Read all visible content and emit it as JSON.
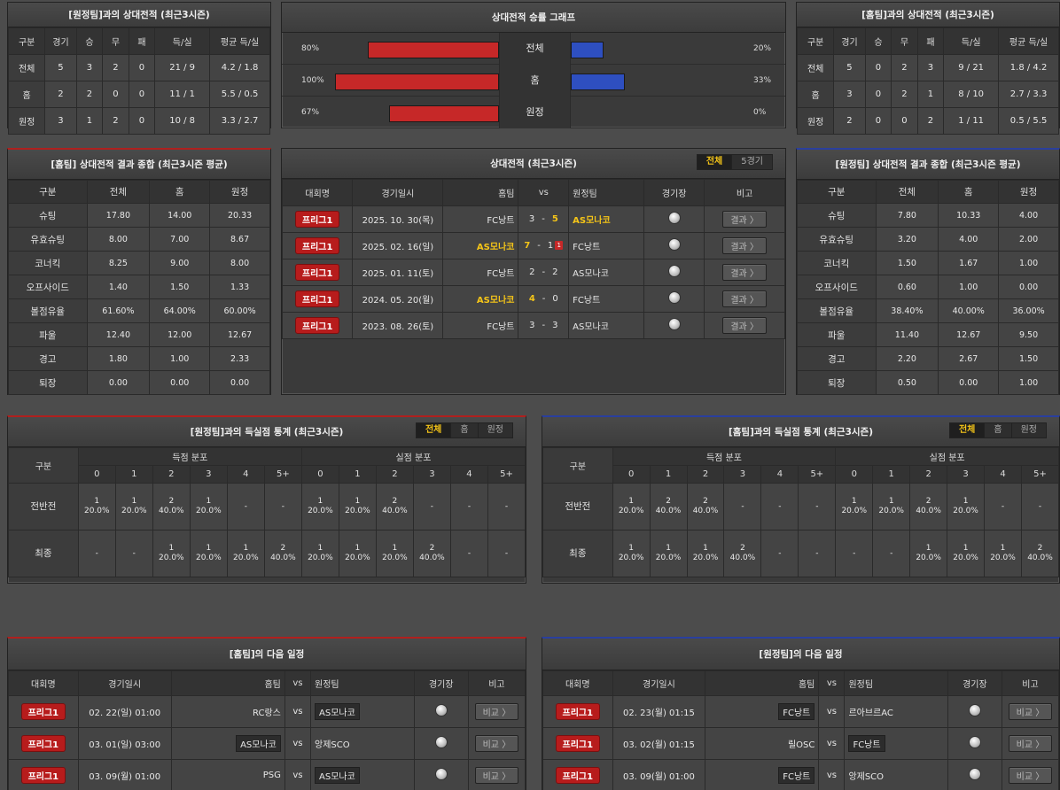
{
  "away_h2h": {
    "title": "[원정팀]과의 상대전적 (최근3시즌)",
    "headers": [
      "구분",
      "경기",
      "승",
      "무",
      "패",
      "득/실",
      "평균 득/실"
    ],
    "rows": [
      [
        "전체",
        "5",
        "3",
        "2",
        "0",
        "21 / 9",
        "4.2 / 1.8"
      ],
      [
        "홈",
        "2",
        "2",
        "0",
        "0",
        "11 / 1",
        "5.5 / 0.5"
      ],
      [
        "원정",
        "3",
        "1",
        "2",
        "0",
        "10 / 8",
        "3.3 / 2.7"
      ]
    ]
  },
  "graph": {
    "title": "상대전적 승률 그래프",
    "rows": [
      {
        "label": "전체",
        "home_pct": "80%",
        "home": 80,
        "away_pct": "20%",
        "away": 20
      },
      {
        "label": "홈",
        "home_pct": "100%",
        "home": 100,
        "away_pct": "33%",
        "away": 33
      },
      {
        "label": "원정",
        "home_pct": "67%",
        "home": 67,
        "away_pct": "0%",
        "away": 0
      }
    ],
    "home_color": "#c62828",
    "away_color": "#2e4fc0"
  },
  "home_h2h": {
    "title": "[홈팀]과의 상대전적 (최근3시즌)",
    "headers": [
      "구분",
      "경기",
      "승",
      "무",
      "패",
      "득/실",
      "평균 득/실"
    ],
    "rows": [
      [
        "전체",
        "5",
        "0",
        "2",
        "3",
        "9 / 21",
        "1.8 / 4.2"
      ],
      [
        "홈",
        "3",
        "0",
        "2",
        "1",
        "8 / 10",
        "2.7 / 3.3"
      ],
      [
        "원정",
        "2",
        "0",
        "0",
        "2",
        "1 / 11",
        "0.5 / 5.5"
      ]
    ]
  },
  "home_stats": {
    "title": "[홈팀] 상대전적 결과 종합 (최근3시즌 평균)",
    "headers": [
      "구분",
      "전체",
      "홈",
      "원정"
    ],
    "rows": [
      [
        "슈팅",
        "17.80",
        "14.00",
        "20.33"
      ],
      [
        "유효슈팅",
        "8.00",
        "7.00",
        "8.67"
      ],
      [
        "코너킥",
        "8.25",
        "9.00",
        "8.00"
      ],
      [
        "오프사이드",
        "1.40",
        "1.50",
        "1.33"
      ],
      [
        "볼점유율",
        "61.60%",
        "64.00%",
        "60.00%"
      ],
      [
        "파울",
        "12.40",
        "12.00",
        "12.67"
      ],
      [
        "경고",
        "1.80",
        "1.00",
        "2.33"
      ],
      [
        "퇴장",
        "0.00",
        "0.00",
        "0.00"
      ]
    ]
  },
  "away_stats": {
    "title": "[원정팀] 상대전적 결과 종합 (최근3시즌 평균)",
    "headers": [
      "구분",
      "전체",
      "홈",
      "원정"
    ],
    "rows": [
      [
        "슈팅",
        "7.80",
        "10.33",
        "4.00"
      ],
      [
        "유효슈팅",
        "3.20",
        "4.00",
        "2.00"
      ],
      [
        "코너킥",
        "1.50",
        "1.67",
        "1.00"
      ],
      [
        "오프사이드",
        "0.60",
        "1.00",
        "0.00"
      ],
      [
        "볼점유율",
        "38.40%",
        "40.00%",
        "36.00%"
      ],
      [
        "파울",
        "11.40",
        "12.67",
        "9.50"
      ],
      [
        "경고",
        "2.20",
        "2.67",
        "1.50"
      ],
      [
        "퇴장",
        "0.50",
        "0.00",
        "1.00"
      ]
    ]
  },
  "matches": {
    "title": "상대전적 (최근3시즌)",
    "tabs": [
      "전체",
      "5경기"
    ],
    "headers": {
      "league": "대회명",
      "date": "경기일시",
      "home": "홈팀",
      "vs": "vs",
      "away": "원정팀",
      "venue": "경기장",
      "note": "비고"
    },
    "rows": [
      {
        "league": "프리그1",
        "date": "2025. 10. 30(목)",
        "home": "FC낭트",
        "hs": "3",
        "as": "5",
        "away": "AS모나코",
        "winner": "away",
        "card": ""
      },
      {
        "league": "프리그1",
        "date": "2025. 02. 16(일)",
        "home": "AS모나코",
        "hs": "7",
        "as": "1",
        "away": "FC낭트",
        "winner": "home",
        "card": "1"
      },
      {
        "league": "프리그1",
        "date": "2025. 01. 11(토)",
        "home": "FC낭트",
        "hs": "2",
        "as": "2",
        "away": "AS모나코",
        "winner": "",
        "card": ""
      },
      {
        "league": "프리그1",
        "date": "2024. 05. 20(월)",
        "home": "AS모나코",
        "hs": "4",
        "as": "0",
        "away": "FC낭트",
        "winner": "home",
        "card": ""
      },
      {
        "league": "프리그1",
        "date": "2023. 08. 26(토)",
        "home": "FC낭트",
        "hs": "3",
        "as": "3",
        "away": "AS모나코",
        "winner": "",
        "card": ""
      }
    ],
    "result_label": "결과 〉",
    "dash": "-"
  },
  "left_goals": {
    "title": "[원정팀]과의 득실점 통계 (최근3시즌)",
    "tabs": [
      "전체",
      "홈",
      "원정"
    ],
    "group_header": "구분",
    "scored_header": "득점 분포",
    "conceded_header": "실점 분포",
    "cols": [
      "0",
      "1",
      "2",
      "3",
      "4",
      "5+"
    ],
    "rows": [
      {
        "label": "전반전",
        "scored": [
          "1|20.0%",
          "1|20.0%",
          "2|40.0%",
          "1|20.0%",
          "-",
          "-"
        ],
        "conceded": [
          "1|20.0%",
          "1|20.0%",
          "2|40.0%",
          "-",
          "-",
          "-"
        ]
      },
      {
        "label": "최종",
        "scored": [
          "-",
          "-",
          "1|20.0%",
          "1|20.0%",
          "1|20.0%",
          "2|40.0%"
        ],
        "conceded": [
          "1|20.0%",
          "1|20.0%",
          "1|20.0%",
          "2|40.0%",
          "-",
          "-"
        ]
      }
    ]
  },
  "right_goals": {
    "title": "[홈팀]과의 득실점 통계 (최근3시즌)",
    "tabs": [
      "전체",
      "홈",
      "원정"
    ],
    "group_header": "구분",
    "scored_header": "득점 분포",
    "conceded_header": "실점 분포",
    "cols": [
      "0",
      "1",
      "2",
      "3",
      "4",
      "5+"
    ],
    "rows": [
      {
        "label": "전반전",
        "scored": [
          "1|20.0%",
          "2|40.0%",
          "2|40.0%",
          "-",
          "-",
          "-"
        ],
        "conceded": [
          "1|20.0%",
          "1|20.0%",
          "2|40.0%",
          "1|20.0%",
          "-",
          "-"
        ]
      },
      {
        "label": "최종",
        "scored": [
          "1|20.0%",
          "1|20.0%",
          "1|20.0%",
          "2|40.0%",
          "-",
          "-"
        ],
        "conceded": [
          "-",
          "-",
          "1|20.0%",
          "1|20.0%",
          "1|20.0%",
          "2|40.0%"
        ]
      }
    ]
  },
  "home_next": {
    "title": "[홈팀]의 다음 일정",
    "headers": {
      "league": "대회명",
      "date": "경기일시",
      "home": "홈팀",
      "vs": "vs",
      "away": "원정팀",
      "venue": "경기장",
      "note": "비고"
    },
    "rows": [
      {
        "league": "프리그1",
        "date": "02. 22(일) 01:00",
        "home": "RC랑스",
        "away": "AS모나코",
        "boxed": "away"
      },
      {
        "league": "프리그1",
        "date": "03. 01(일) 03:00",
        "home": "AS모나코",
        "away": "앙제SCO",
        "boxed": "home"
      },
      {
        "league": "프리그1",
        "date": "03. 09(월) 01:00",
        "home": "PSG",
        "away": "AS모나코",
        "boxed": "away"
      }
    ],
    "vs": "vs",
    "btn": "비교 〉"
  },
  "away_next": {
    "title": "[원정팀]의 다음 일정",
    "headers": {
      "league": "대회명",
      "date": "경기일시",
      "home": "홈팀",
      "vs": "vs",
      "away": "원정팀",
      "venue": "경기장",
      "note": "비고"
    },
    "rows": [
      {
        "league": "프리그1",
        "date": "02. 23(월) 01:15",
        "home": "FC낭트",
        "away": "르아브르AC",
        "boxed": "home"
      },
      {
        "league": "프리그1",
        "date": "03. 02(월) 01:15",
        "home": "릴OSC",
        "away": "FC낭트",
        "boxed": "away"
      },
      {
        "league": "프리그1",
        "date": "03. 09(월) 01:00",
        "home": "FC낭트",
        "away": "앙제SCO",
        "boxed": "home"
      }
    ],
    "vs": "vs",
    "btn": "비교 〉"
  }
}
